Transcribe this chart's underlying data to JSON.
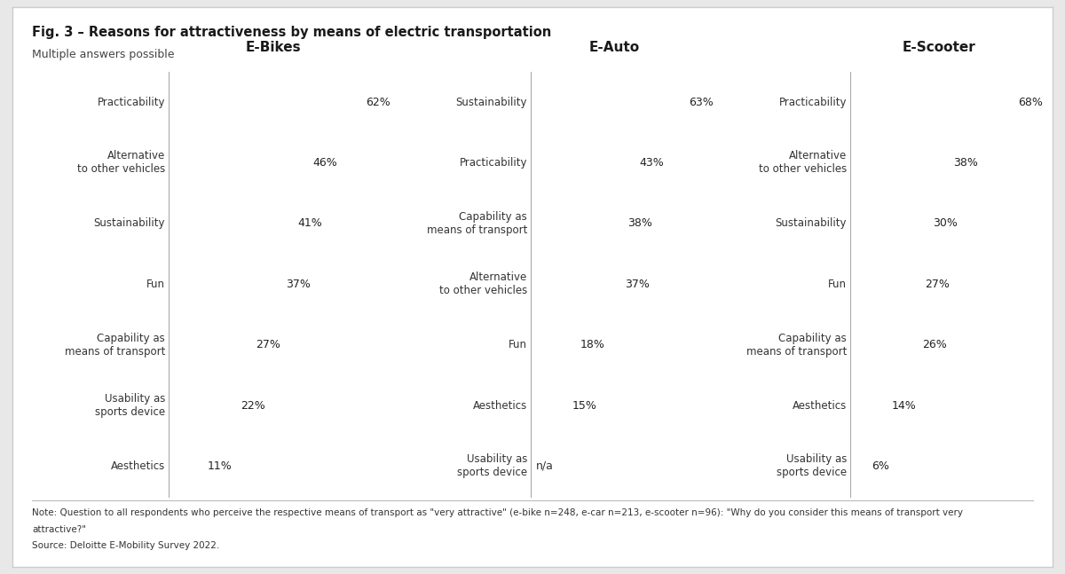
{
  "title": "Fig. 3 – Reasons for attractiveness by means of electric transportation",
  "subtitle": "Multiple answers possible",
  "note": "Note: Question to all respondents who perceive the respective means of transport as \"very attractive\" (e-bike n=248, e-car n=213, e-scooter n=96): \"Why do you consider this means of transport very attractive?\"",
  "source": "Source: Deloitte E-Mobility Survey 2022.",
  "columns": [
    {
      "title": "E-Bikes",
      "color": "#8DC63F",
      "labels": [
        "Practicability",
        "Alternative\nto other vehicles",
        "Sustainability",
        "Fun",
        "Capability as\nmeans of transport",
        "Usability as\nsports device",
        "Aesthetics"
      ],
      "values": [
        62,
        46,
        41,
        37,
        27,
        22,
        11
      ],
      "display": [
        "62%",
        "46%",
        "41%",
        "37%",
        "27%",
        "22%",
        "11%"
      ],
      "truncated": [
        true,
        false,
        false,
        false,
        false,
        false,
        false
      ]
    },
    {
      "title": "E-Auto",
      "color": "#1A6B3C",
      "labels": [
        "Sustainability",
        "Practicability",
        "Capability as\nmeans of transport",
        "Alternative\nto other vehicles",
        "Fun",
        "Aesthetics",
        "Usability as\nsports device"
      ],
      "values": [
        63,
        43,
        38,
        37,
        18,
        15,
        null
      ],
      "display": [
        "63%",
        "43%",
        "38%",
        "37%",
        "18%",
        "15%",
        "n/a"
      ],
      "truncated": [
        true,
        false,
        false,
        false,
        false,
        false,
        false
      ]
    },
    {
      "title": "E-Scooter",
      "color": "#1A5C2E",
      "labels": [
        "Practicability",
        "Alternative\nto other vehicles",
        "Sustainability",
        "Fun",
        "Capability as\nmeans of transport",
        "Aesthetics",
        "Usability as\nsports device"
      ],
      "values": [
        68,
        38,
        30,
        27,
        26,
        14,
        6
      ],
      "display": [
        "68%",
        "38%",
        "30%",
        "27%",
        "26%",
        "14%",
        "6%"
      ],
      "truncated": [
        true,
        false,
        false,
        false,
        false,
        false,
        false
      ]
    }
  ],
  "background_color": "#e8e8e8",
  "inner_background": "#ffffff",
  "border_color": "#cccccc",
  "separator_color": "#aaaaaa",
  "label_fontsize": 8.5,
  "title_fontsize": 10.5,
  "col_title_fontsize": 11,
  "pct_fontsize": 9,
  "note_fontsize": 7.5
}
